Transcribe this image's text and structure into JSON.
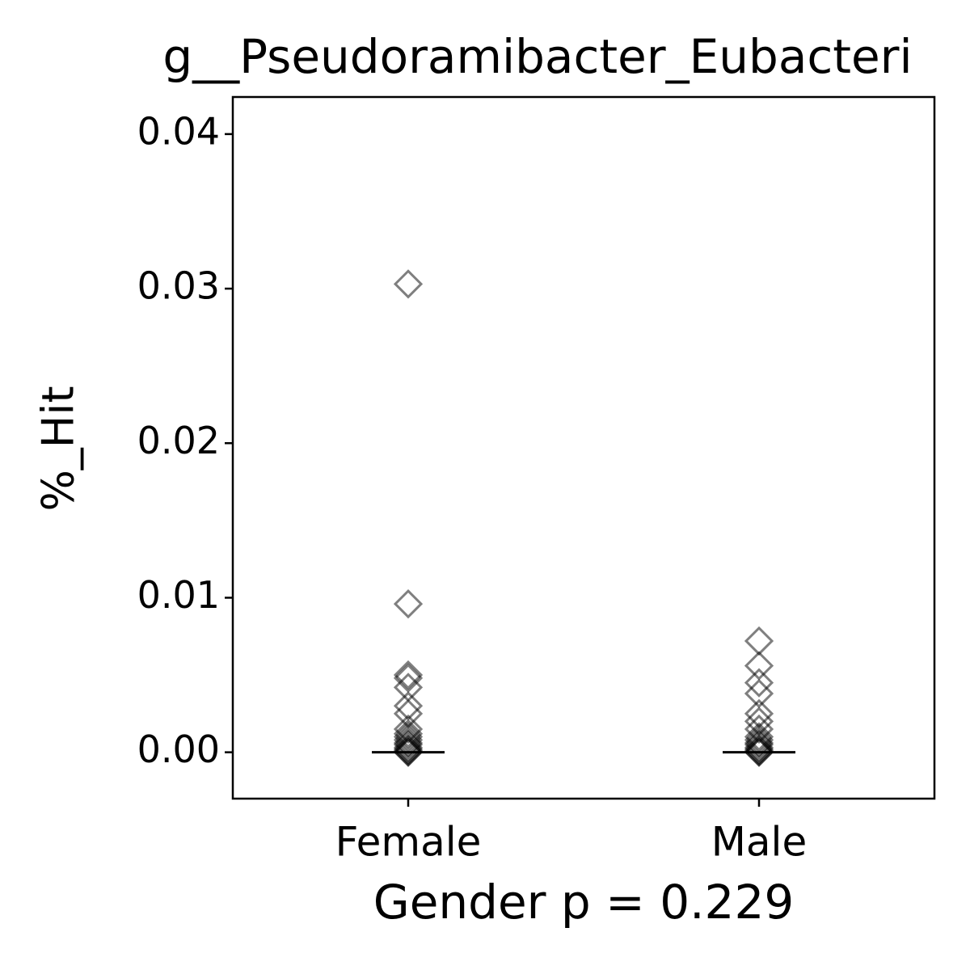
{
  "chart_data": {
    "type": "strip",
    "title": "g__Pseudoramibacter_Eubacteri",
    "xlabel": "Gender p = 0.229",
    "ylabel": "%_Hit",
    "categories": [
      "Female",
      "Male"
    ],
    "values": [
      [
        0.0303,
        0.0096,
        0.005,
        0.0048,
        0.0042,
        0.003,
        0.0025,
        0.0015,
        0.0012,
        0.001,
        0.0008,
        0.0006,
        0.0005,
        0.0003,
        0.0002,
        0.0001,
        0,
        0
      ],
      [
        0.0072,
        0.0056,
        0.0045,
        0.0038,
        0.0025,
        0.002,
        0.0015,
        0.001,
        0.0008,
        0.0006,
        0.0005,
        0.0003,
        0.0002,
        0.0001,
        0,
        0
      ]
    ],
    "medians": [
      0,
      0
    ],
    "color": "#000000",
    "ylim": [
      -0.003,
      0.0424
    ],
    "yticks": [
      {
        "value": 0,
        "label": "0.00"
      },
      {
        "value": 0.01,
        "label": "0.01"
      },
      {
        "value": 0.02,
        "label": "0.02"
      },
      {
        "value": 0.03,
        "label": "0.03"
      },
      {
        "value": 0.04,
        "label": "0.04"
      }
    ]
  }
}
